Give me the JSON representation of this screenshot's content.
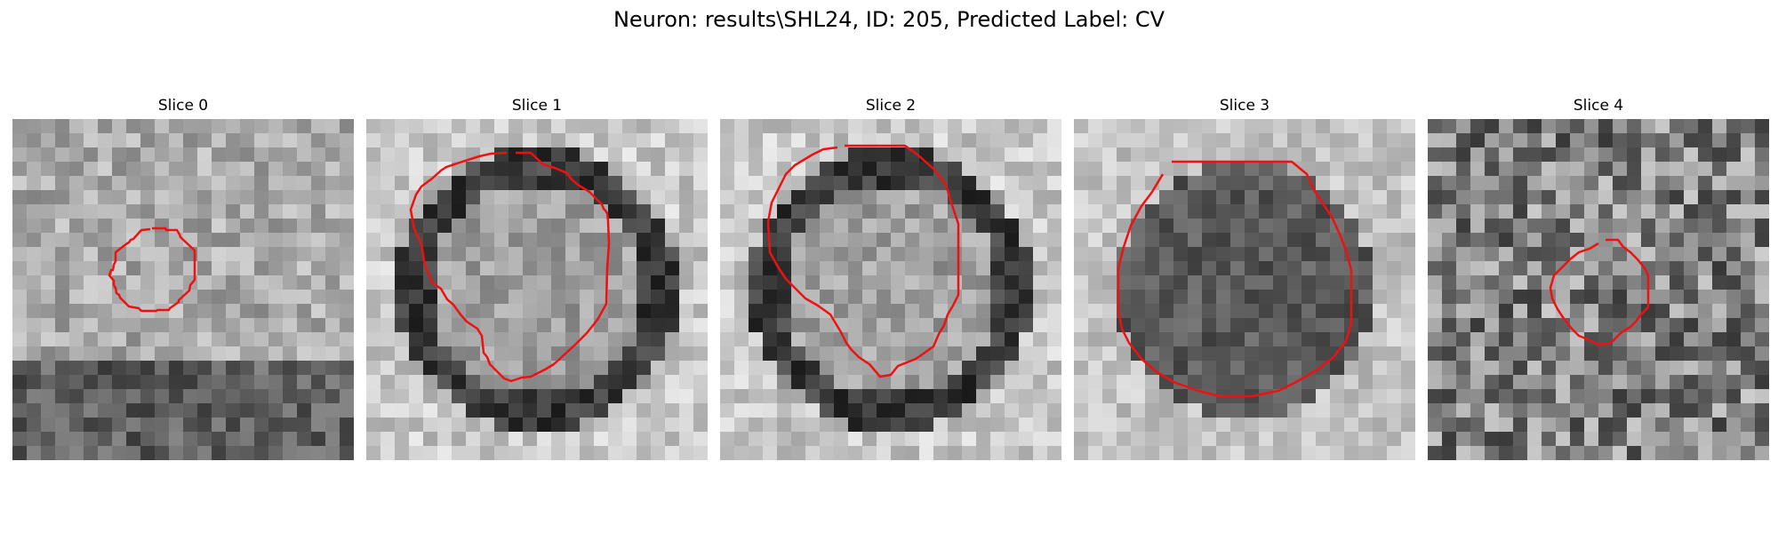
{
  "figure": {
    "title": "Neuron: results\\SHL24, ID: 205, Predicted Label: CV"
  },
  "panels": [
    {
      "title": "Slice 0",
      "seed": 11,
      "grain": "smooth",
      "contour_color": "#ee1111"
    },
    {
      "title": "Slice 1",
      "seed": 23,
      "grain": "ring",
      "contour_color": "#ee1111"
    },
    {
      "title": "Slice 2",
      "seed": 37,
      "grain": "ring",
      "contour_color": "#ee1111"
    },
    {
      "title": "Slice 3",
      "seed": 51,
      "grain": "dark",
      "contour_color": "#ee1111"
    },
    {
      "title": "Slice 4",
      "seed": 67,
      "grain": "noisy",
      "contour_color": "#ee1111"
    }
  ]
}
